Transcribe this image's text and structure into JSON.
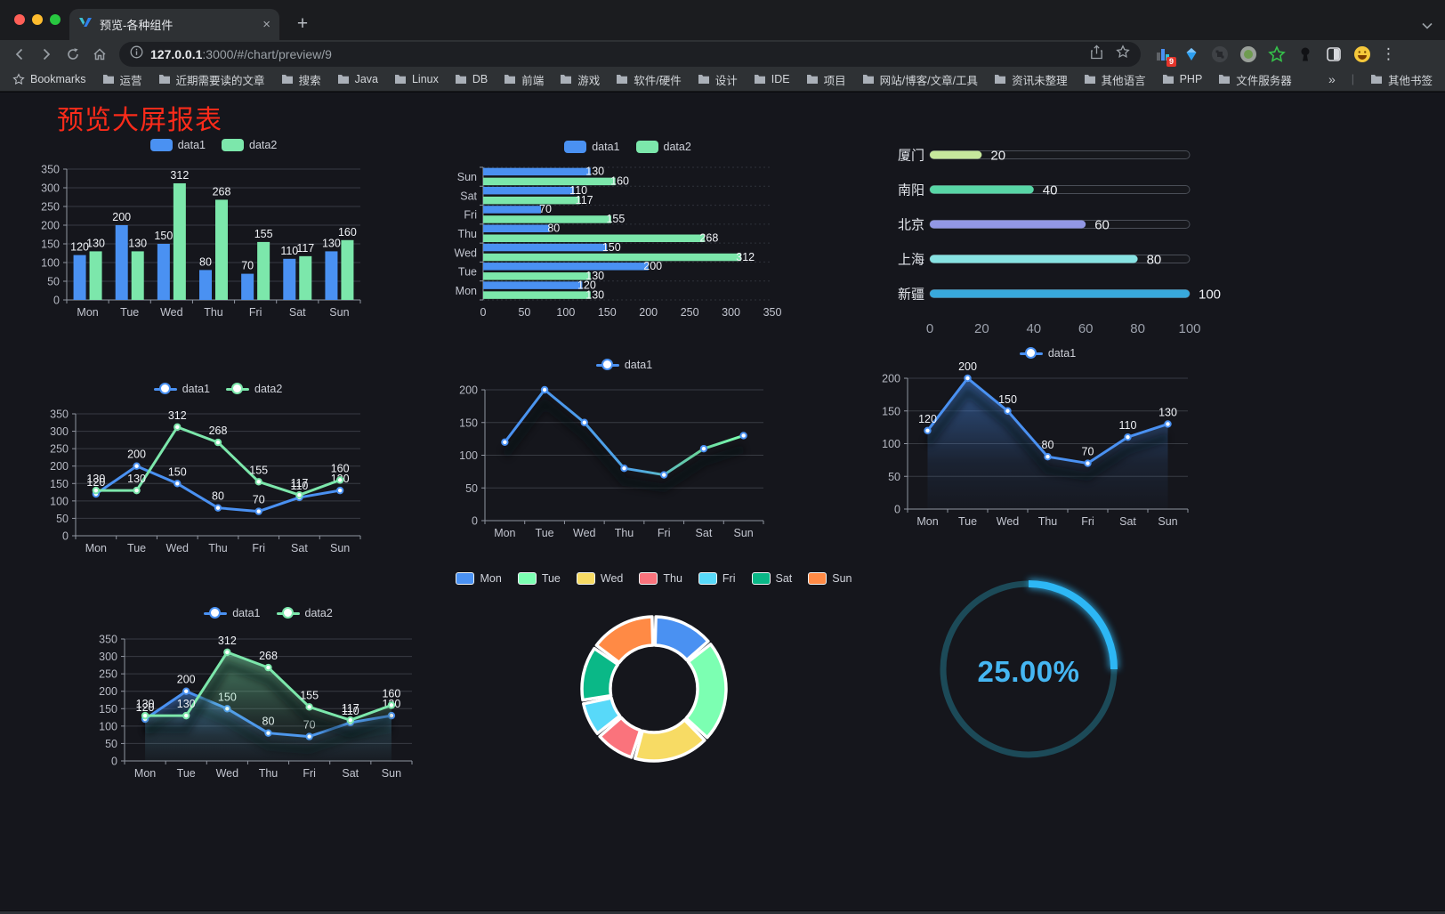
{
  "browser": {
    "traffic_lights": [
      "#ff5f57",
      "#febc2e",
      "#28c840"
    ],
    "tab": {
      "title": "预览-各种组件"
    },
    "glyphs": {
      "close": "×",
      "plus": "+",
      "kebab": "⋮"
    },
    "toolbar": {
      "url_host": "127.0.0.1",
      "url_rest": ":3000/#/chart/preview/9"
    },
    "extensions": {
      "badge": "9"
    },
    "bookmarks": {
      "label": "Bookmarks",
      "items": [
        "运营",
        "近期需要读的文章",
        "搜索",
        "Java",
        "Linux",
        "DB",
        "前端",
        "游戏",
        "软件/硬件",
        "设计",
        "IDE",
        "项目",
        "网站/博客/文章/工具",
        "资讯未整理",
        "其他语言",
        "PHP",
        "文件服务器"
      ],
      "overflow": "»",
      "other": "其他书签"
    }
  },
  "page": {
    "title": "预览大屏报表",
    "title_color": "#fb2b1a",
    "background": "#15161c"
  },
  "chart_data": [
    {
      "id": "grouped-bar",
      "type": "bar",
      "categories": [
        "Mon",
        "Tue",
        "Wed",
        "Thu",
        "Fri",
        "Sat",
        "Sun"
      ],
      "series": [
        {
          "name": "data1",
          "color": "#4a91f2",
          "values": [
            120,
            200,
            150,
            80,
            70,
            110,
            130
          ]
        },
        {
          "name": "data2",
          "color": "#7ce7ab",
          "values": [
            130,
            130,
            312,
            268,
            155,
            117,
            160
          ]
        }
      ],
      "ylim": [
        0,
        350
      ],
      "yticks": [
        0,
        50,
        100,
        150,
        200,
        250,
        300,
        350
      ],
      "legend_position": "top",
      "grid": true,
      "show_labels": true
    },
    {
      "id": "horizontal-bar",
      "type": "bar-horizontal",
      "categories": [
        "Mon",
        "Tue",
        "Wed",
        "Thu",
        "Fri",
        "Sat",
        "Sun"
      ],
      "series": [
        {
          "name": "data1",
          "color": "#4a91f2",
          "values": [
            120,
            200,
            150,
            80,
            70,
            110,
            130
          ]
        },
        {
          "name": "data2",
          "color": "#7ce7ab",
          "values": [
            130,
            130,
            312,
            268,
            155,
            117,
            160
          ]
        }
      ],
      "xlim": [
        0,
        350
      ],
      "xticks": [
        0,
        50,
        100,
        150,
        200,
        250,
        300,
        350
      ],
      "legend_position": "top",
      "show_labels": true
    },
    {
      "id": "progress-bars",
      "type": "progress",
      "categories": [
        "厦门",
        "南阳",
        "北京",
        "上海",
        "新疆"
      ],
      "values": [
        20,
        40,
        60,
        80,
        100
      ],
      "colors": [
        "#c6e89c",
        "#58d6a6",
        "#9297e4",
        "#87e2e2",
        "#38a9dc"
      ],
      "xlim": [
        0,
        100
      ],
      "xticks": [
        0,
        20,
        40,
        60,
        80,
        100
      ],
      "show_labels": true
    },
    {
      "id": "dual-line",
      "type": "line",
      "categories": [
        "Mon",
        "Tue",
        "Wed",
        "Thu",
        "Fri",
        "Sat",
        "Sun"
      ],
      "series": [
        {
          "name": "data1",
          "color": "#4a91f2",
          "values": [
            120,
            200,
            150,
            80,
            70,
            110,
            130
          ]
        },
        {
          "name": "data2",
          "color": "#7ce7ab",
          "values": [
            130,
            130,
            312,
            268,
            155,
            117,
            160
          ]
        }
      ],
      "ylim": [
        0,
        350
      ],
      "yticks": [
        0,
        50,
        100,
        150,
        200,
        250,
        300,
        350
      ],
      "legend_position": "top",
      "show_labels": true
    },
    {
      "id": "gradient-line",
      "type": "line-gradient",
      "categories": [
        "Mon",
        "Tue",
        "Wed",
        "Thu",
        "Fri",
        "Sat",
        "Sun"
      ],
      "series": [
        {
          "name": "data1",
          "color": "#4a91f2",
          "color_end": "#7cffb2",
          "values": [
            120,
            200,
            150,
            80,
            70,
            110,
            130
          ]
        }
      ],
      "ylim": [
        0,
        200
      ],
      "yticks": [
        0,
        50,
        100,
        150,
        200
      ],
      "legend_position": "top",
      "show_labels": false
    },
    {
      "id": "area-line",
      "type": "area",
      "categories": [
        "Mon",
        "Tue",
        "Wed",
        "Thu",
        "Fri",
        "Sat",
        "Sun"
      ],
      "series": [
        {
          "name": "data1",
          "color": "#4a91f2",
          "values": [
            120,
            200,
            150,
            80,
            70,
            110,
            130
          ]
        }
      ],
      "ylim": [
        0,
        200
      ],
      "yticks": [
        0,
        50,
        100,
        150,
        200
      ],
      "legend_position": "top",
      "show_labels": true
    },
    {
      "id": "dual-area",
      "type": "area",
      "categories": [
        "Mon",
        "Tue",
        "Wed",
        "Thu",
        "Fri",
        "Sat",
        "Sun"
      ],
      "series": [
        {
          "name": "data1",
          "color": "#4a91f2",
          "values": [
            120,
            200,
            150,
            80,
            70,
            110,
            130
          ]
        },
        {
          "name": "data2",
          "color": "#7ce7ab",
          "values": [
            130,
            130,
            312,
            268,
            155,
            117,
            160
          ]
        }
      ],
      "ylim": [
        0,
        350
      ],
      "yticks": [
        0,
        50,
        100,
        150,
        200,
        250,
        300,
        350
      ],
      "legend_position": "top",
      "show_labels": true
    },
    {
      "id": "donut-pie",
      "type": "pie",
      "labels": [
        "Mon",
        "Tue",
        "Wed",
        "Thu",
        "Fri",
        "Sat",
        "Sun"
      ],
      "values": [
        120,
        200,
        150,
        80,
        70,
        110,
        130
      ],
      "colors": [
        "#4a91f2",
        "#7cffb2",
        "#f7db64",
        "#fa737c",
        "#58d9f9",
        "#0ab887",
        "#ff8a45"
      ],
      "legend_position": "top"
    },
    {
      "id": "gauge",
      "type": "gauge",
      "percent": 25,
      "value_label": "25.00%",
      "color": "#2db7f5",
      "track_color": "#1c4a58"
    }
  ]
}
